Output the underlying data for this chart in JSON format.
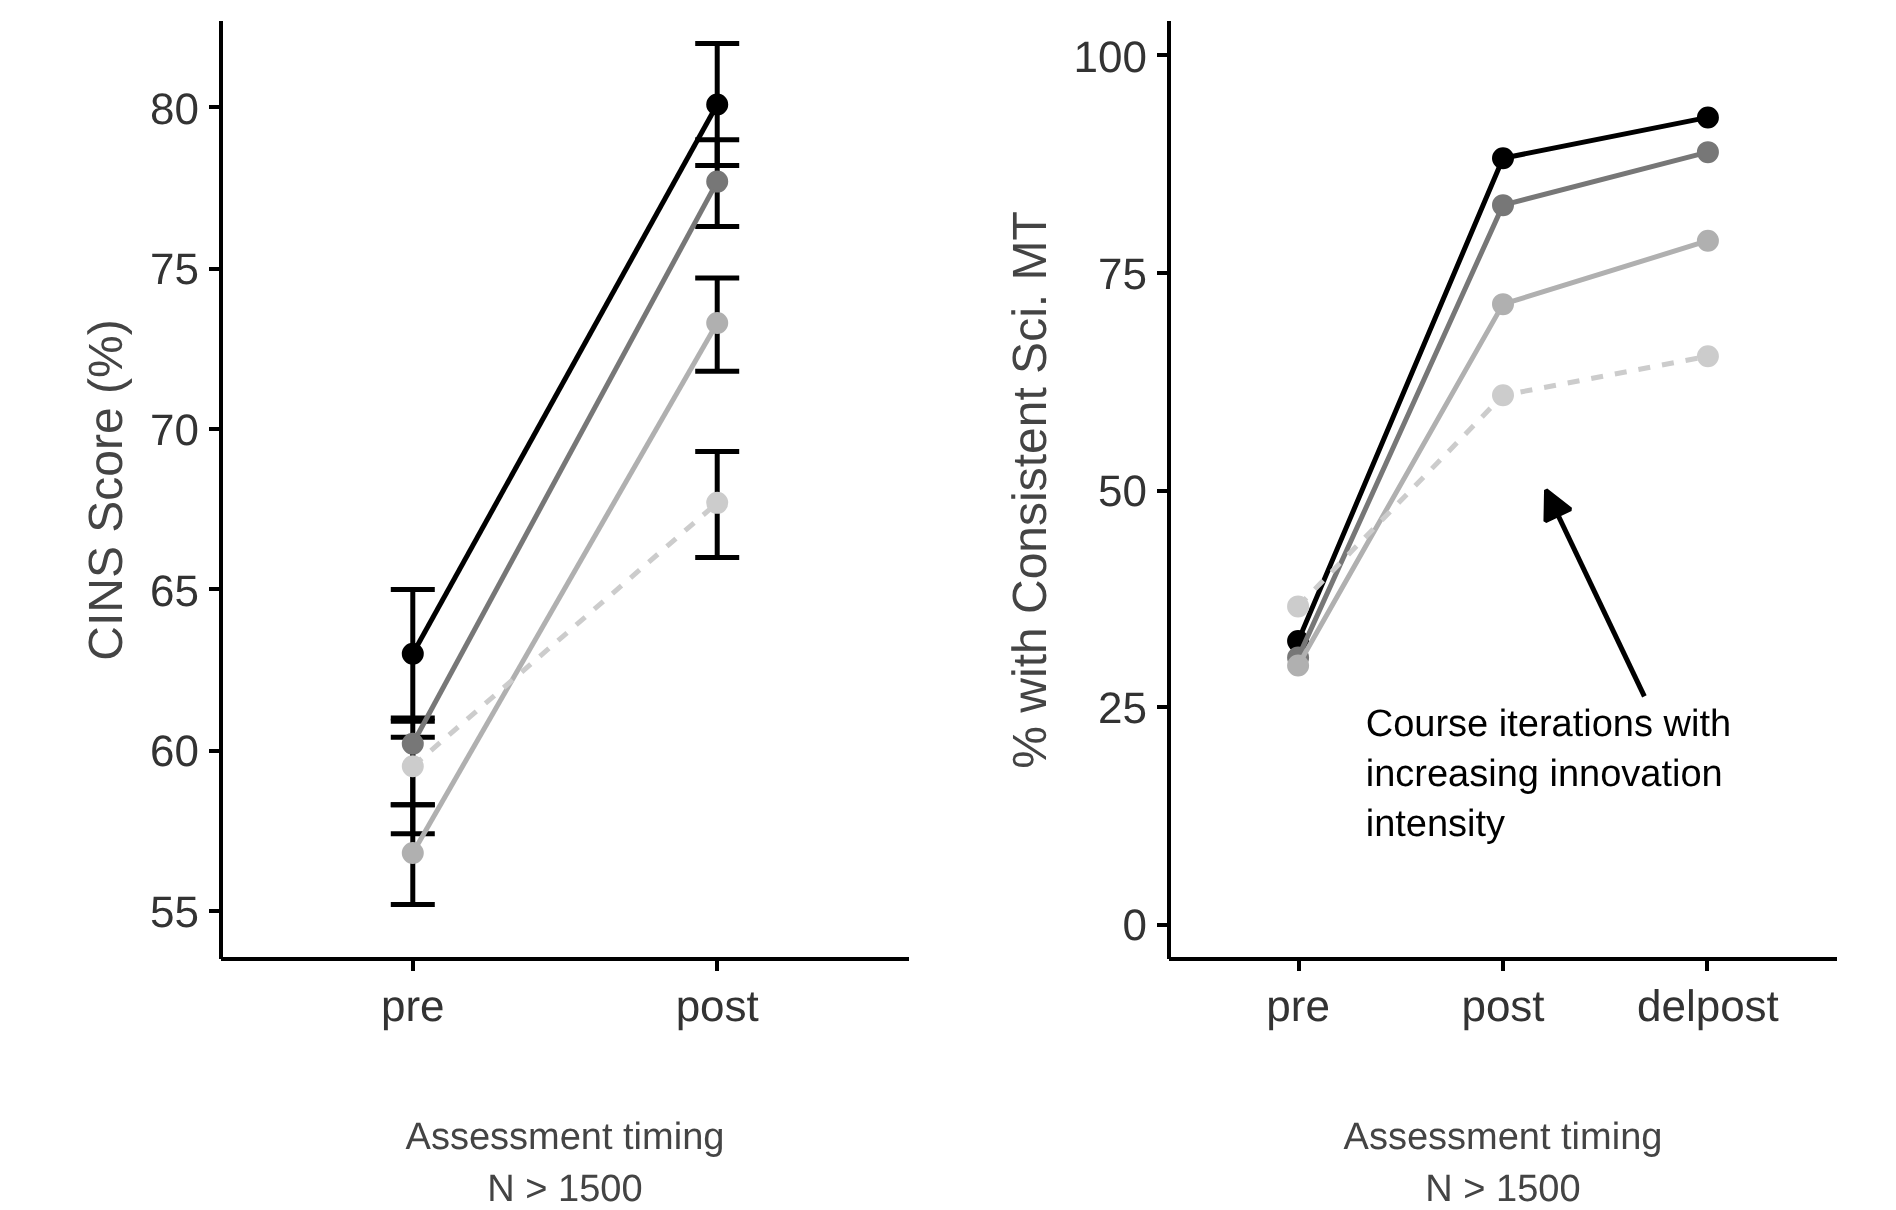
{
  "chart_data": [
    {
      "type": "line",
      "xlabel": "Assessment timing",
      "ylabel": "CINS Score (%)",
      "categories": [
        "pre",
        "post"
      ],
      "ylim": [
        53.5,
        82.7
      ],
      "yticks": [
        55,
        60,
        65,
        70,
        75,
        80
      ],
      "grid": false,
      "marker": "circle",
      "annotations": [
        "N > 1500"
      ],
      "series": [
        {
          "color": "#000000",
          "values": [
            63.0,
            80.1
          ],
          "errors": [
            2.0,
            1.9
          ]
        },
        {
          "color": "#777777",
          "values": [
            60.2,
            77.7
          ],
          "errors": [
            [
              58.3,
              60.9
            ],
            [
              76.3,
              79.0
            ]
          ]
        },
        {
          "color": "#b0b0b0",
          "values": [
            56.8,
            73.3
          ],
          "errors": [
            [
              55.2,
              58.3
            ],
            [
              71.8,
              74.7
            ]
          ]
        },
        {
          "color": "#cccccc",
          "values": [
            59.5,
            67.7
          ],
          "errors": [
            [
              57.4,
              60.4
            ],
            [
              66.0,
              69.3
            ]
          ],
          "line_style": "dashed"
        }
      ]
    },
    {
      "type": "line",
      "xlabel": "Assessment timing",
      "ylabel": "% with Consistent Sci. MT",
      "categories": [
        "pre",
        "post",
        "delpost"
      ],
      "ylim": [
        -4,
        104
      ],
      "yticks": [
        0,
        25,
        50,
        75,
        100
      ],
      "grid": false,
      "marker": "circle",
      "annotations": [
        "N > 1500",
        "Course iterations with\nincreasing innovation\nintensity"
      ],
      "series": [
        {
          "color": "#000000",
          "values": [
            32.6,
            88.2,
            92.9
          ]
        },
        {
          "color": "#777777",
          "values": [
            30.7,
            82.8,
            88.9
          ]
        },
        {
          "color": "#b0b0b0",
          "values": [
            29.8,
            71.4,
            78.7
          ]
        },
        {
          "color": "#cccccc",
          "values": [
            36.6,
            60.9,
            65.4
          ],
          "line_style": "dashed"
        }
      ]
    }
  ]
}
